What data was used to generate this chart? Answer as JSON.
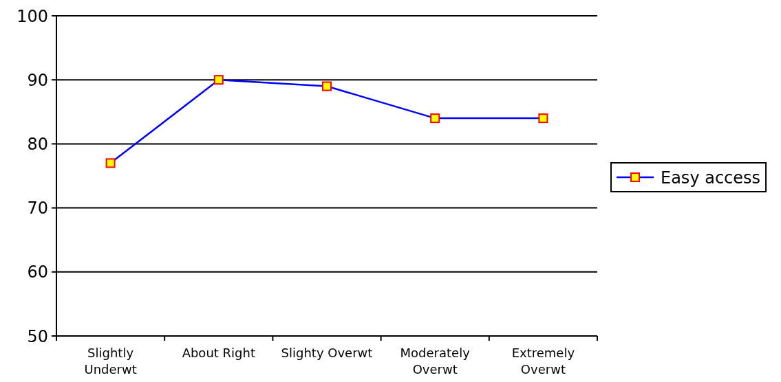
{
  "chart_data": {
    "type": "line",
    "categories": [
      "Slightly Underwt",
      "About Right",
      "Slighty Overwt",
      "Moderately Overwt",
      "Extremely Overwt"
    ],
    "series": [
      {
        "name": "Easy access",
        "color": "#0000ff",
        "values": [
          77,
          90,
          89,
          84,
          84
        ]
      }
    ],
    "ylim": [
      50,
      100
    ],
    "yticks": [
      50,
      60,
      70,
      80,
      90,
      100
    ],
    "grid": "y",
    "legend": "right",
    "marker": "square"
  }
}
